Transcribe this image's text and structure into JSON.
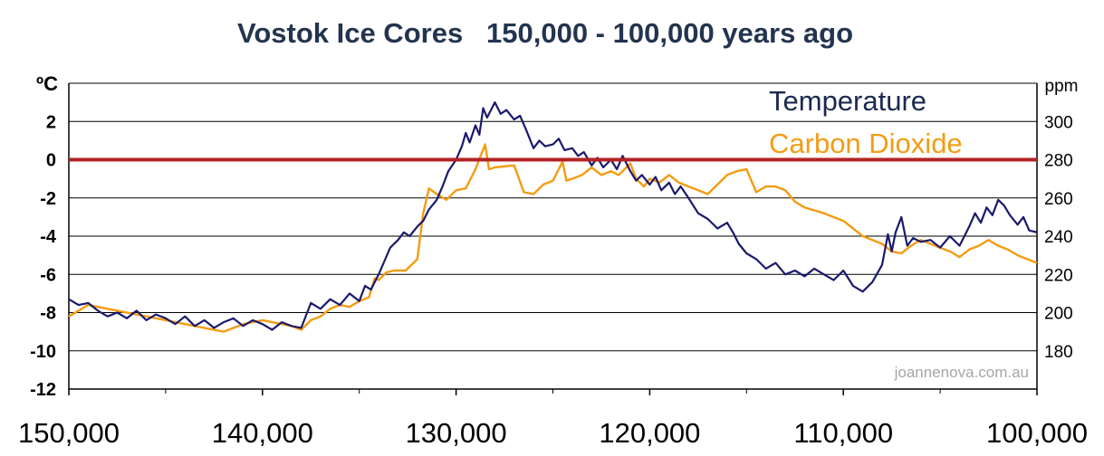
{
  "chart_data": {
    "type": "line",
    "title": "Vostok Ice Cores   150,000 - 100,000 years ago",
    "xlabel": "",
    "ylabel_left": "ºC",
    "ylabel_right": "ppm",
    "xlim": [
      150000,
      100000
    ],
    "xticks": [
      150000,
      140000,
      130000,
      120000,
      110000,
      100000
    ],
    "xtick_labels": [
      "150,000",
      "140,000",
      "130,000",
      "120,000",
      "110,000",
      "100,000"
    ],
    "ylim_left": [
      -12,
      4
    ],
    "yticks_left": [
      -12,
      -10,
      -8,
      -6,
      -4,
      -2,
      0,
      2
    ],
    "ytick_labels_left": [
      "-12",
      "-10",
      "-8",
      "-6",
      "-4",
      "-2",
      "0",
      "2"
    ],
    "ylim_right": [
      160,
      320
    ],
    "yticks_right": [
      180,
      200,
      220,
      240,
      260,
      280,
      300
    ],
    "ytick_labels_right": [
      "180",
      "200",
      "220",
      "240",
      "260",
      "280",
      "300"
    ],
    "grid": true,
    "zero_line": {
      "y": 0,
      "color": "#b22222"
    },
    "watermark": "joannenova.com.au",
    "series": [
      {
        "name": "Temperature",
        "axis": "left",
        "color": "#1a1a6e",
        "x": [
          150000,
          149500,
          149000,
          148500,
          148000,
          147500,
          147000,
          146500,
          146000,
          145500,
          145000,
          144500,
          144000,
          143500,
          143000,
          142500,
          142000,
          141500,
          141000,
          140500,
          140000,
          139500,
          139000,
          138500,
          138000,
          137500,
          137000,
          136500,
          136000,
          135500,
          135000,
          134700,
          134400,
          134000,
          133700,
          133400,
          133000,
          132700,
          132400,
          132000,
          131700,
          131400,
          131000,
          130700,
          130400,
          130000,
          129700,
          129500,
          129300,
          129000,
          128800,
          128600,
          128400,
          128200,
          128000,
          127700,
          127400,
          127000,
          126700,
          126400,
          126000,
          125700,
          125400,
          125000,
          124700,
          124400,
          124000,
          123700,
          123400,
          123000,
          122700,
          122400,
          122000,
          121700,
          121400,
          121000,
          120700,
          120400,
          120000,
          119700,
          119400,
          119000,
          118700,
          118400,
          118000,
          117500,
          117000,
          116500,
          116000,
          115700,
          115400,
          115000,
          114500,
          114000,
          113500,
          113000,
          112500,
          112000,
          111500,
          111000,
          110500,
          110000,
          109500,
          109000,
          108500,
          108000,
          107700,
          107500,
          107300,
          107000,
          106700,
          106400,
          106000,
          105500,
          105000,
          104500,
          104000,
          103500,
          103200,
          102900,
          102600,
          102300,
          102000,
          101700,
          101400,
          101000,
          100700,
          100400,
          100000
        ],
        "y": [
          -7.3,
          -7.6,
          -7.5,
          -7.9,
          -8.2,
          -8.0,
          -8.3,
          -7.9,
          -8.4,
          -8.1,
          -8.3,
          -8.6,
          -8.2,
          -8.7,
          -8.4,
          -8.8,
          -8.5,
          -8.3,
          -8.7,
          -8.4,
          -8.6,
          -8.9,
          -8.5,
          -8.7,
          -8.8,
          -7.5,
          -7.8,
          -7.3,
          -7.6,
          -7.0,
          -7.4,
          -6.6,
          -6.8,
          -6.0,
          -5.3,
          -4.6,
          -4.2,
          -3.8,
          -4.0,
          -3.5,
          -3.2,
          -2.6,
          -2.1,
          -1.4,
          -0.6,
          0.0,
          0.7,
          1.4,
          0.9,
          1.8,
          1.3,
          2.7,
          2.2,
          2.6,
          3.0,
          2.4,
          2.6,
          2.1,
          2.3,
          1.6,
          0.6,
          1.0,
          0.7,
          0.8,
          1.1,
          0.5,
          0.6,
          0.2,
          0.4,
          -0.3,
          0.1,
          -0.4,
          0.0,
          -0.5,
          0.2,
          -0.6,
          -1.1,
          -0.8,
          -1.3,
          -0.9,
          -1.6,
          -1.2,
          -1.8,
          -1.4,
          -2.0,
          -2.8,
          -3.1,
          -3.6,
          -3.3,
          -3.8,
          -4.4,
          -4.9,
          -5.2,
          -5.7,
          -5.4,
          -6.0,
          -5.8,
          -6.1,
          -5.7,
          -6.0,
          -6.3,
          -5.8,
          -6.6,
          -6.9,
          -6.4,
          -5.5,
          -3.9,
          -4.8,
          -3.8,
          -3.0,
          -4.5,
          -4.1,
          -4.3,
          -4.2,
          -4.6,
          -4.0,
          -4.5,
          -3.5,
          -2.8,
          -3.3,
          -2.5,
          -2.9,
          -2.1,
          -2.4,
          -2.9,
          -3.4,
          -3.0,
          -3.7,
          -3.8
        ]
      },
      {
        "name": "Carbon Dioxide",
        "axis": "right",
        "color": "#f39c12",
        "x": [
          150000,
          149000,
          148000,
          147000,
          146000,
          145000,
          144000,
          143000,
          142000,
          141000,
          140000,
          139500,
          139000,
          138500,
          138000,
          137500,
          137000,
          136500,
          136000,
          135500,
          135000,
          134500,
          134200,
          134000,
          133600,
          133200,
          132600,
          132000,
          131700,
          131400,
          131000,
          130500,
          130000,
          129500,
          129000,
          128500,
          128300,
          128000,
          127000,
          126500,
          126000,
          125500,
          125000,
          124500,
          124300,
          124000,
          123500,
          123000,
          122500,
          122000,
          121600,
          121000,
          120700,
          120300,
          120000,
          119500,
          119000,
          118500,
          118000,
          117500,
          117000,
          116500,
          116000,
          115500,
          115000,
          114500,
          114000,
          113500,
          113000,
          112500,
          112000,
          111000,
          110000,
          109500,
          109000,
          108500,
          108000,
          107500,
          107000,
          106500,
          106000,
          105500,
          105000,
          104500,
          104000,
          103500,
          103000,
          102500,
          102000,
          101500,
          101000,
          100500,
          100000
        ],
        "y": [
          198,
          204,
          202,
          200,
          198,
          196,
          194,
          192,
          190,
          194,
          196,
          195,
          194,
          193,
          191,
          196,
          198,
          202,
          204,
          203,
          206,
          208,
          218,
          217,
          221,
          222,
          222,
          228,
          252,
          265,
          262,
          259,
          264,
          265,
          275,
          288,
          275,
          276,
          277,
          263,
          262,
          267,
          269,
          279,
          269,
          270,
          272,
          276,
          272,
          274,
          272,
          278,
          270,
          266,
          270,
          268,
          272,
          268,
          266,
          264,
          262,
          267,
          272,
          274,
          275,
          263,
          266,
          266,
          264,
          258,
          255,
          252,
          248,
          244,
          240,
          238,
          236,
          232,
          231,
          235,
          238,
          236,
          234,
          232,
          229,
          233,
          235,
          238,
          235,
          233,
          230,
          228,
          226
        ]
      }
    ]
  }
}
